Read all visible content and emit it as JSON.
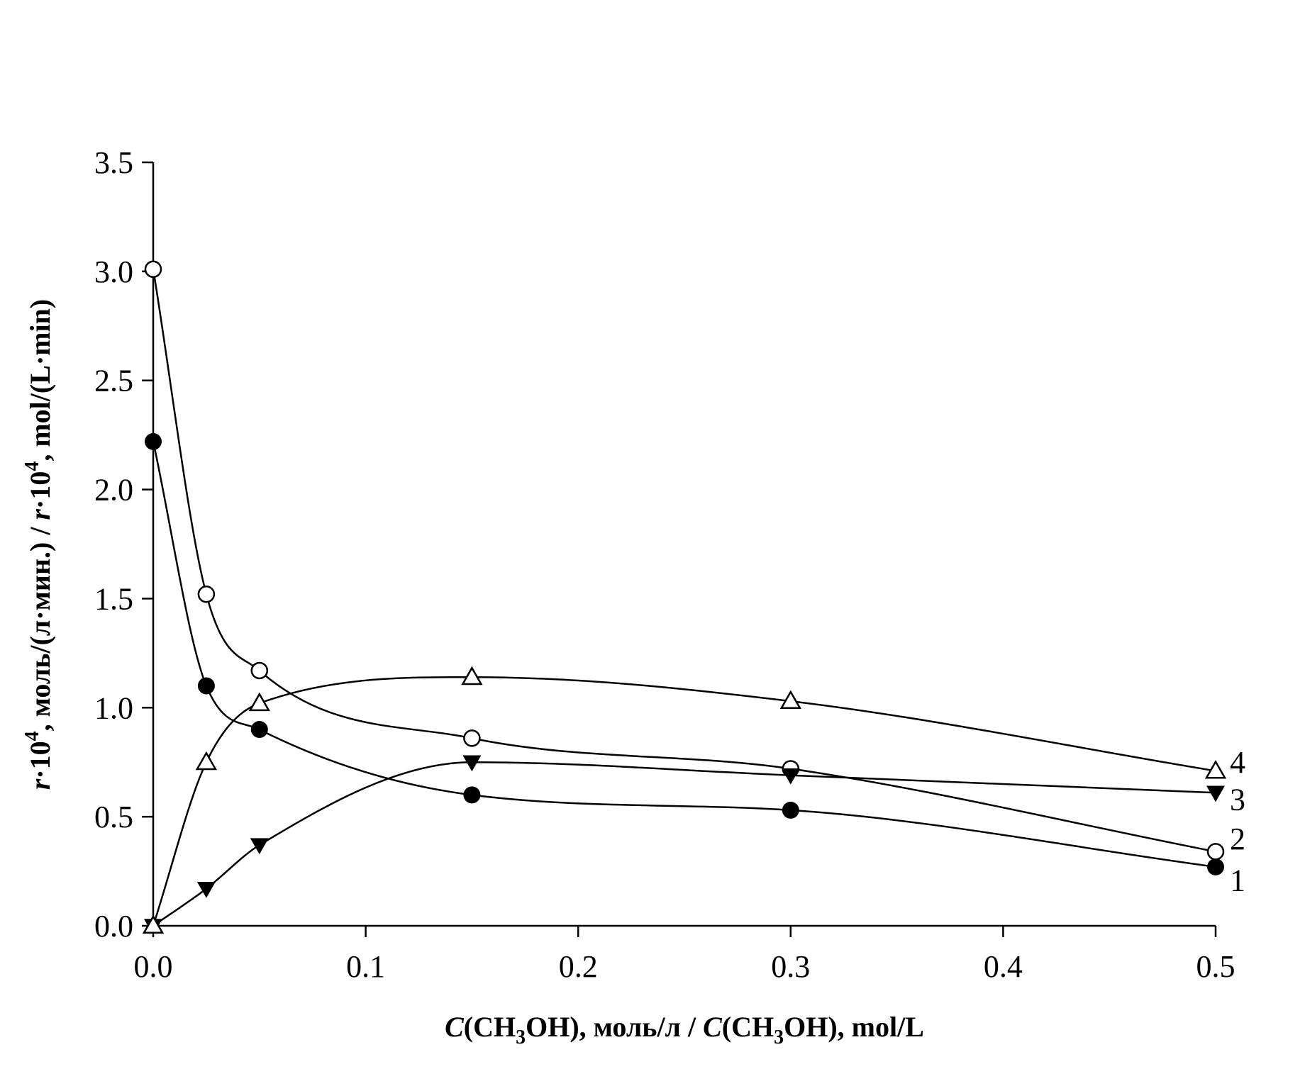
{
  "chart_data": {
    "type": "scatter",
    "title": "",
    "xlabel": {
      "parts": [
        "C",
        "(CH",
        "3",
        "OH), моль/л  /  ",
        "C",
        "(CH",
        "3",
        "OH), mol/L"
      ]
    },
    "ylabel": {
      "parts": [
        "r",
        "·10",
        "4",
        ", моль/(л·мин.)  /  ",
        "r",
        "·10",
        "4",
        ", mol/(L·min)"
      ]
    },
    "xlim": [
      0,
      0.5
    ],
    "ylim": [
      0,
      3.5
    ],
    "x_ticks": [
      "0.0",
      "0.1",
      "0.2",
      "0.3",
      "0.4",
      "0.5"
    ],
    "y_ticks": [
      "0.0",
      "0.5",
      "1.0",
      "1.5",
      "2.0",
      "2.5",
      "3.0",
      "3.5"
    ],
    "grid": false,
    "legend": "none",
    "series": [
      {
        "name": "1",
        "marker": "filled-circle",
        "x": [
          0,
          0.025,
          0.05,
          0.15,
          0.3,
          0.5
        ],
        "y": [
          2.22,
          1.1,
          0.9,
          0.6,
          0.53,
          0.27
        ]
      },
      {
        "name": "2",
        "marker": "open-circle",
        "x": [
          0,
          0.025,
          0.05,
          0.15,
          0.3,
          0.5
        ],
        "y": [
          3.01,
          1.52,
          1.17,
          0.86,
          0.72,
          0.34
        ]
      },
      {
        "name": "3",
        "marker": "filled-triangle-down",
        "x": [
          0,
          0.025,
          0.05,
          0.15,
          0.3,
          0.5
        ],
        "y": [
          0.0,
          0.17,
          0.37,
          0.75,
          0.69,
          0.61
        ]
      },
      {
        "name": "4",
        "marker": "open-triangle-up",
        "x": [
          0,
          0.025,
          0.05,
          0.15,
          0.3,
          0.5
        ],
        "y": [
          0.0,
          0.75,
          1.02,
          1.14,
          1.03,
          0.71
        ]
      }
    ]
  }
}
